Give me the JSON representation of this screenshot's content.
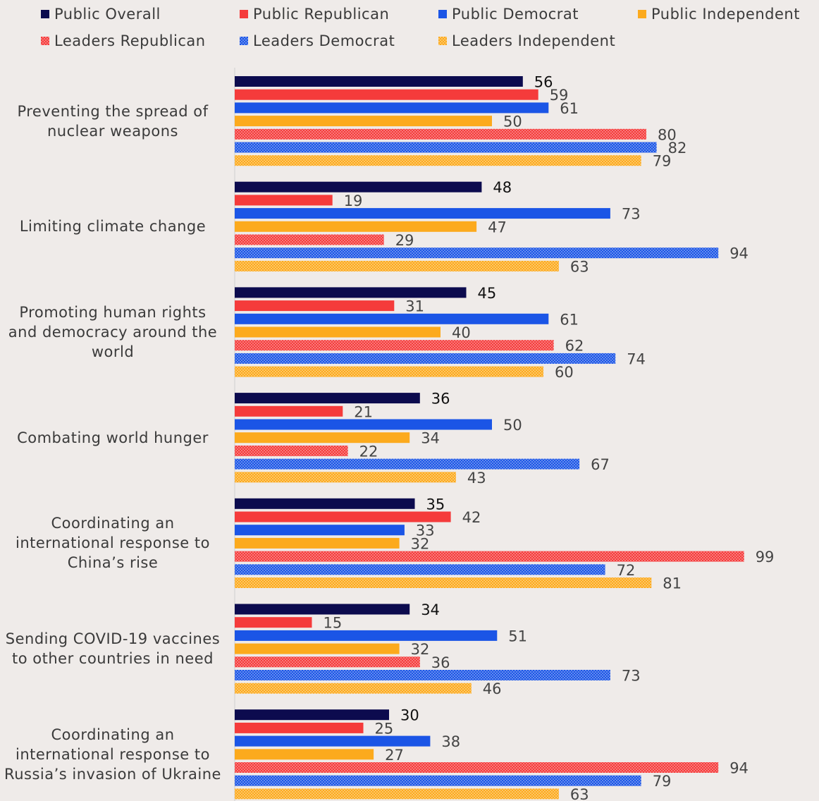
{
  "chart_data": {
    "type": "bar",
    "orientation": "horizontal",
    "categories": [
      "Preventing the spread of nuclear weapons",
      "Limiting climate change",
      "Promoting human rights and democracy around the world",
      "Combating world hunger",
      "Coordinating an international response to China’s rise",
      "Sending COVID-19 vaccines to other countries in need",
      "Coordinating an international response to Russia’s invasion of Ukraine"
    ],
    "xlim": [
      0,
      100
    ],
    "series": [
      {
        "name": "Public Overall",
        "color": "#0c0b4e",
        "values": [
          56,
          48,
          45,
          36,
          35,
          34,
          30
        ]
      },
      {
        "name": "Public Republican",
        "color": "#f53b3b",
        "values": [
          59,
          19,
          31,
          21,
          42,
          15,
          25
        ]
      },
      {
        "name": "Public Democrat",
        "color": "#1b55e6",
        "values": [
          61,
          73,
          61,
          50,
          33,
          51,
          38
        ]
      },
      {
        "name": "Public Independent",
        "color": "#fcaa1d",
        "values": [
          50,
          47,
          40,
          34,
          32,
          32,
          27
        ]
      },
      {
        "name": "Leaders Republican",
        "color": "#f53b3b",
        "pattern": "dots",
        "values": [
          80,
          29,
          62,
          22,
          99,
          36,
          94
        ]
      },
      {
        "name": "Leaders Democrat",
        "color": "#1b55e6",
        "pattern": "dots",
        "values": [
          82,
          94,
          74,
          67,
          72,
          73,
          79
        ]
      },
      {
        "name": "Leaders Independent",
        "color": "#fcaa1d",
        "pattern": "dots",
        "values": [
          79,
          63,
          60,
          43,
          81,
          46,
          63
        ]
      }
    ]
  }
}
